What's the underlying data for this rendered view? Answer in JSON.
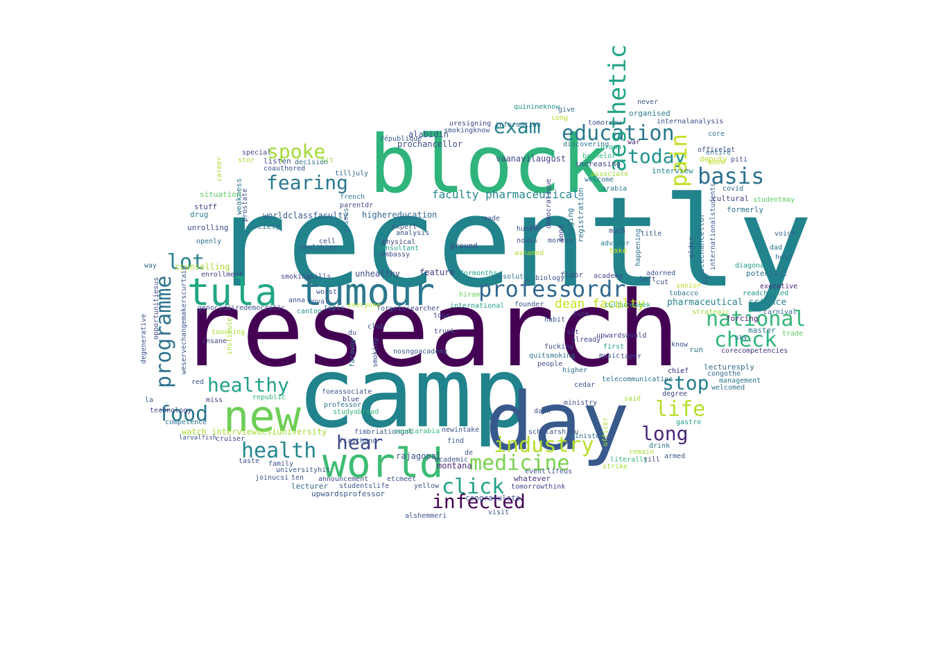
{
  "words": [
    {
      "text": "research",
      "color": "#440154"
    },
    {
      "text": "recently",
      "color": "#21838c"
    },
    {
      "text": "camp",
      "color": "#21838c"
    },
    {
      "text": "block",
      "color": "#2fb47c"
    },
    {
      "text": "day",
      "color": "#38598c"
    },
    {
      "text": "new",
      "color": "#6ece58"
    },
    {
      "text": "world",
      "color": "#3dbc74"
    },
    {
      "text": "tula",
      "color": "#22a785"
    },
    {
      "text": "tumour",
      "color": "#2a788e"
    },
    {
      "text": "professor",
      "color": "#31688e"
    },
    {
      "text": "dr",
      "color": "#31688e"
    },
    {
      "text": "education",
      "color": "#2a788e"
    },
    {
      "text": "exam",
      "color": "#26828e"
    },
    {
      "text": "spoke",
      "color": "#a2da37"
    },
    {
      "text": "fearing",
      "color": "#2a788e"
    },
    {
      "text": "today",
      "color": "#20928c"
    },
    {
      "text": "basis",
      "color": "#2d708e"
    },
    {
      "text": "pain",
      "color": "#c2df23"
    },
    {
      "text": "aesthetic",
      "color": "#20a486"
    },
    {
      "text": "national",
      "color": "#35b779"
    },
    {
      "text": "check",
      "color": "#2fb47c"
    },
    {
      "text": "programme",
      "color": "#2c728e"
    },
    {
      "text": "lot",
      "color": "#26828e"
    },
    {
      "text": "healthy",
      "color": "#1fa187"
    },
    {
      "text": "stop",
      "color": "#277f8e"
    },
    {
      "text": "life",
      "color": "#b5de2b"
    },
    {
      "text": "food",
      "color": "#2a788e"
    },
    {
      "text": "long",
      "color": "#482677"
    },
    {
      "text": "health",
      "color": "#25858e"
    },
    {
      "text": "hear",
      "color": "#3e4a89"
    },
    {
      "text": "industry",
      "color": "#b5de2b"
    },
    {
      "text": "medicine",
      "color": "#7ad151"
    },
    {
      "text": "click",
      "color": "#1fa187"
    },
    {
      "text": "infected",
      "color": "#440154"
    },
    {
      "text": "dean faculty",
      "color": "#c8e020"
    },
    {
      "text": "pharmaceutical science",
      "color": "#26828e"
    },
    {
      "text": "faculty pharmaceutical",
      "color": "#25858e"
    },
    {
      "text": "worldclassfaculty",
      "color": "#365c8d"
    },
    {
      "text": "prochancellor",
      "color": "#3e4a89"
    },
    {
      "text": "vaanavilaugust",
      "color": "#404588"
    },
    {
      "text": "alabidin",
      "color": "#3b528b"
    },
    {
      "text": "highereducation",
      "color": "#31688e"
    },
    {
      "text": "feature",
      "color": "#46337e"
    },
    {
      "text": "unhealthy",
      "color": "#3e4a89"
    },
    {
      "text": "watch interviewucsiuniversity",
      "color": "#a8db34"
    },
    {
      "text": "rajagopal",
      "color": "#3b528b"
    },
    {
      "text": "montana",
      "color": "#482878"
    },
    {
      "text": "upwardsprofessor",
      "color": "#38598c"
    },
    {
      "text": "congratulate",
      "color": "#3e4a89"
    },
    {
      "text": "tomorrowthink",
      "color": "#404588"
    },
    {
      "text": "whatever",
      "color": "#46337e"
    },
    {
      "text": "announcement",
      "color": "#3e4a89"
    },
    {
      "text": "lecturer",
      "color": "#31688e"
    },
    {
      "text": "studentslife",
      "color": "#3b528b"
    },
    {
      "text": "forcing",
      "color": "#481f70"
    },
    {
      "text": "master",
      "color": "#2c728e"
    },
    {
      "text": "cultural",
      "color": "#414487"
    },
    {
      "text": "vicechancellor",
      "color": "#2c728e"
    },
    {
      "text": "internationalstudents",
      "color": "#38598c"
    },
    {
      "text": "interview",
      "color": "#25858e"
    },
    {
      "text": "officelet",
      "color": "#3e4a89"
    },
    {
      "text": "deputy",
      "color": "#b5de2b"
    },
    {
      "text": "strategic",
      "color": "#a0da39"
    },
    {
      "text": "potential",
      "color": "#2d708e"
    },
    {
      "text": "diagonal",
      "color": "#1f998a"
    },
    {
      "text": "executive",
      "color": "#482475"
    },
    {
      "text": "carnival",
      "color": "#32648e"
    },
    {
      "text": "trade",
      "color": "#5ec962"
    },
    {
      "text": "corecompetencies",
      "color": "#46327e"
    },
    {
      "text": "lecturesply",
      "color": "#31688e"
    },
    {
      "text": "congothe",
      "color": "#31688e"
    },
    {
      "text": "management",
      "color": "#2a788e"
    },
    {
      "text": "welcomed",
      "color": "#2d708e"
    },
    {
      "text": "readchecked",
      "color": "#1f988b"
    },
    {
      "text": "held",
      "color": "#32648e"
    },
    {
      "text": "dad",
      "color": "#2c728e"
    },
    {
      "text": "voice",
      "color": "#35608d"
    },
    {
      "text": "studentmay",
      "color": "#5ec962"
    },
    {
      "text": "formerly",
      "color": "#2c728e"
    },
    {
      "text": "covid",
      "color": "#31688e"
    },
    {
      "text": "piti",
      "color": "#3e4a89"
    },
    {
      "text": "book",
      "color": "#c0df25"
    },
    {
      "text": "entire",
      "color": "#2d708e"
    },
    {
      "text": "core",
      "color": "#2c728e"
    },
    {
      "text": "organised",
      "color": "#29798e"
    },
    {
      "text": "never",
      "color": "#38598c"
    },
    {
      "text": "internalanalysis",
      "color": "#3e4a89"
    },
    {
      "text": "war",
      "color": "#482878"
    },
    {
      "text": "discovering",
      "color": "#2c728e"
    },
    {
      "text": "bachelor",
      "color": "#31b57b"
    },
    {
      "text": "group",
      "color": "#1fa187"
    },
    {
      "text": "cong",
      "color": "#b5de2b"
    },
    {
      "text": "give",
      "color": "#31688e"
    },
    {
      "text": "tomorrow",
      "color": "#3b528b"
    },
    {
      "text": "quinineknow",
      "color": "#21918c"
    },
    {
      "text": "increasing",
      "color": "#404588"
    },
    {
      "text": "welcome",
      "color": "#2d708e"
    },
    {
      "text": "arabia",
      "color": "#2a788e"
    },
    {
      "text": "associate",
      "color": "#a5db36"
    },
    {
      "text": "smokingknow",
      "color": "#3b528b"
    },
    {
      "text": "uresigning",
      "color": "#3e4a89"
    },
    {
      "text": "information",
      "color": "#2d708e"
    },
    {
      "text": "république",
      "color": "#38598c"
    },
    {
      "text": "listen",
      "color": "#3b528b"
    },
    {
      "text": "coauthored",
      "color": "#3b528b"
    },
    {
      "text": "decision",
      "color": "#2d708e"
    },
    {
      "text": "special",
      "color": "#3e4a89"
    },
    {
      "text": "hit",
      "color": "#95d840"
    },
    {
      "text": "tilljuly",
      "color": "#31688e"
    },
    {
      "text": "situation",
      "color": "#5ec962"
    },
    {
      "text": "stuff",
      "color": "#404588"
    },
    {
      "text": "drug",
      "color": "#2a788e"
    },
    {
      "text": "unrolling",
      "color": "#3e4a89"
    },
    {
      "text": "openly",
      "color": "#2d708e"
    },
    {
      "text": "counselling",
      "color": "#a8db34"
    },
    {
      "text": "enrollment",
      "color": "#404588"
    },
    {
      "text": "way",
      "color": "#31688e"
    },
    {
      "text": "society",
      "color": "#2c728e"
    },
    {
      "text": "prostate",
      "color": "#3e4a89"
    },
    {
      "text": "weakness",
      "color": "#2a788e"
    },
    {
      "text": "parentdr",
      "color": "#3e4a89"
    },
    {
      "text": "french",
      "color": "#2a788e"
    },
    {
      "text": "expert",
      "color": "#3b528b"
    },
    {
      "text": "analysis",
      "color": "#3b528b"
    },
    {
      "text": "consultant",
      "color": "#1fa187"
    },
    {
      "text": "embassy",
      "color": "#3e4a89"
    },
    {
      "text": "physical",
      "color": "#404588"
    },
    {
      "text": "cell",
      "color": "#3e4a89"
    },
    {
      "text": "wealthier",
      "color": "#38598c"
    },
    {
      "text": "discus",
      "color": "#2d708e"
    },
    {
      "text": "rep",
      "color": "#3b528b"
    },
    {
      "text": "ground",
      "color": "#404588"
    },
    {
      "text": "democratique",
      "color": "#404588"
    },
    {
      "text": "mood",
      "color": "#404588"
    },
    {
      "text": "raging",
      "color": "#2c728e"
    },
    {
      "text": "registration",
      "color": "#2d708e"
    },
    {
      "text": "adviser",
      "color": "#2a788e"
    },
    {
      "text": "take",
      "color": "#c8e020"
    },
    {
      "text": "much",
      "color": "#3e4a89"
    },
    {
      "text": "title",
      "color": "#3b528b"
    },
    {
      "text": "academy",
      "color": "#404588"
    },
    {
      "text": "floor",
      "color": "#3e4a89"
    },
    {
      "text": "founder",
      "color": "#3b528b"
    },
    {
      "text": "biology",
      "color": "#3b528b"
    },
    {
      "text": "absolute",
      "color": "#2c728e"
    },
    {
      "text": "formonths",
      "color": "#1fa187"
    },
    {
      "text": "hiram",
      "color": "#6ece58"
    },
    {
      "text": "international",
      "color": "#1fa187"
    },
    {
      "text": "tour",
      "color": "#3b528b"
    },
    {
      "text": "researcher",
      "color": "#404588"
    },
    {
      "text": "forget",
      "color": "#3b528b"
    },
    {
      "text": "everyone",
      "color": "#b5de2b"
    },
    {
      "text": "topic",
      "color": "#2a788e"
    },
    {
      "text": "canton",
      "color": "#21918c"
    },
    {
      "text": "club",
      "color": "#3b528b"
    },
    {
      "text": "du",
      "color": "#3b528b"
    },
    {
      "text": "trunk",
      "color": "#404588"
    },
    {
      "text": "habit",
      "color": "#3b528b"
    },
    {
      "text": "fuck",
      "color": "#404588"
    },
    {
      "text": "already",
      "color": "#404588"
    },
    {
      "text": "fucking",
      "color": "#3e4a89"
    },
    {
      "text": "sit",
      "color": "#404588"
    },
    {
      "text": "upwardswould",
      "color": "#404588"
    },
    {
      "text": "music",
      "color": "#3b528b"
    },
    {
      "text": "taper",
      "color": "#404588"
    },
    {
      "text": "quitsmoking",
      "color": "#2c728e"
    },
    {
      "text": "people",
      "color": "#3e4a89"
    },
    {
      "text": "first",
      "color": "#1fa187"
    },
    {
      "text": "higher",
      "color": "#2d708e"
    },
    {
      "text": "cedar",
      "color": "#3b528b"
    },
    {
      "text": "telecommunication",
      "color": "#2c728e"
    },
    {
      "text": "said",
      "color": "#a8db34"
    },
    {
      "text": "ministry",
      "color": "#3e4a89"
    },
    {
      "text": "dark",
      "color": "#3b528b"
    },
    {
      "text": "scholarshipu",
      "color": "#3b528b"
    },
    {
      "text": "minister",
      "color": "#2d708e"
    },
    {
      "text": "officer",
      "color": "#a8db34"
    },
    {
      "text": "literally",
      "color": "#35b779"
    },
    {
      "text": "till",
      "color": "#404588"
    },
    {
      "text": "strike",
      "color": "#a8db34"
    },
    {
      "text": "drink",
      "color": "#2c728e"
    },
    {
      "text": "armed",
      "color": "#3b528b"
    },
    {
      "text": "remain",
      "color": "#a5db36"
    },
    {
      "text": "gastro",
      "color": "#1fa187"
    },
    {
      "text": "degree",
      "color": "#404588"
    },
    {
      "text": "chief",
      "color": "#404588"
    },
    {
      "text": "run",
      "color": "#2a788e"
    },
    {
      "text": "know",
      "color": "#3b528b"
    },
    {
      "text": "adorned",
      "color": "#3b528b"
    },
    {
      "text": "left",
      "color": "#3e4a89"
    },
    {
      "text": "cut",
      "color": "#3e4a89"
    },
    {
      "text": "tobacco",
      "color": "#2c728e"
    },
    {
      "text": "senior",
      "color": "#c0df25"
    },
    {
      "text": "happening",
      "color": "#2d708e"
    },
    {
      "text": "older",
      "color": "#3b528b"
    },
    {
      "text": "technology",
      "color": "#404588"
    },
    {
      "text": "opportunitiesus",
      "color": "#404588"
    },
    {
      "text": "degenerative",
      "color": "#3b528b"
    },
    {
      "text": "weservechangemakerscurtain",
      "color": "#3b528b"
    },
    {
      "text": "genocidairedemocratic",
      "color": "#3b528b"
    },
    {
      "text": "smokingkills",
      "color": "#404588"
    },
    {
      "text": "royal",
      "color": "#3b528b"
    },
    {
      "text": "worst",
      "color": "#3b528b"
    },
    {
      "text": "insane",
      "color": "#404588"
    },
    {
      "text": "touching",
      "color": "#a8db34"
    },
    {
      "text": "institute",
      "color": "#a8db34"
    },
    {
      "text": "republic",
      "color": "#35b779"
    },
    {
      "text": "miss",
      "color": "#404588"
    },
    {
      "text": "red",
      "color": "#3b528b"
    },
    {
      "text": "la",
      "color": "#3b528b"
    },
    {
      "text": "competence",
      "color": "#2c728e"
    },
    {
      "text": "cruiser",
      "color": "#404588"
    },
    {
      "text": "larvalfish",
      "color": "#3b528b"
    },
    {
      "text": "taste",
      "color": "#3b528b"
    },
    {
      "text": "family",
      "color": "#3b528b"
    },
    {
      "text": "universityhit",
      "color": "#3b528b"
    },
    {
      "text": "joinucsi",
      "color": "#3b528b"
    },
    {
      "text": "ten",
      "color": "#3b528b"
    },
    {
      "text": "foeassociate",
      "color": "#3b528b"
    },
    {
      "text": "blue",
      "color": "#404588"
    },
    {
      "text": "professor",
      "color": "#2c728e"
    },
    {
      "text": "studyabroad",
      "color": "#35b779"
    },
    {
      "text": "fimbriationgot",
      "color": "#3b528b"
    },
    {
      "text": "saudiarabia",
      "color": "#35b779"
    },
    {
      "text": "firsthand",
      "color": "#3b528b"
    },
    {
      "text": "newintake",
      "color": "#3b528b"
    },
    {
      "text": "find",
      "color": "#3b528b"
    },
    {
      "text": "academic",
      "color": "#3b528b"
    },
    {
      "text": "de",
      "color": "#3b528b"
    },
    {
      "text": "yellow",
      "color": "#3b528b"
    },
    {
      "text": "etcmeet",
      "color": "#3b528b"
    },
    {
      "text": "visit",
      "color": "#3b528b"
    },
    {
      "text": "alshemmeri",
      "color": "#3b528b"
    },
    {
      "text": "lifeus",
      "color": "#3b528b"
    },
    {
      "text": "event",
      "color": "#3b528b"
    },
    {
      "text": "nosngoacademy",
      "color": "#3b528b"
    },
    {
      "text": "faraway",
      "color": "#2c728e"
    },
    {
      "text": "smoking",
      "color": "#3b528b"
    },
    {
      "text": "human",
      "color": "#3b528b"
    },
    {
      "text": "nowus",
      "color": "#3b528b"
    },
    {
      "text": "ashamed",
      "color": "#a8db34"
    },
    {
      "text": "moreus",
      "color": "#3b528b"
    },
    {
      "text": "made",
      "color": "#3b528b"
    },
    {
      "text": "cultureweek",
      "color": "#35b779"
    },
    {
      "text": "stor",
      "color": "#a8db34"
    },
    {
      "text": "career",
      "color": "#a8db34"
    },
    {
      "text": "anna",
      "color": "#3b528b"
    },
    {
      "text": "chief",
      "color": "#404588"
    },
    {
      "text": "sky",
      "color": "#2c728e"
    },
    {
      "text": "sir",
      "color": "#3b528b"
    }
  ]
}
